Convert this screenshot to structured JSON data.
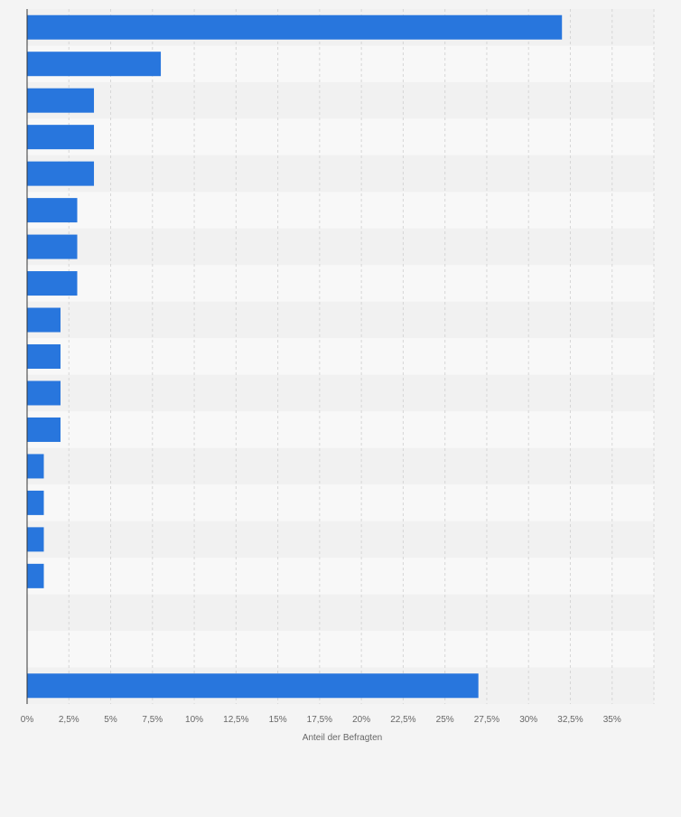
{
  "chart_data": {
    "type": "bar",
    "orientation": "horizontal",
    "categories": [
      "",
      "",
      "",
      "",
      "",
      "",
      "",
      "",
      "",
      "",
      "",
      "",
      "",
      "",
      "",
      "",
      "",
      "",
      ""
    ],
    "values": [
      32,
      8,
      4,
      4,
      4,
      3,
      3,
      3,
      2,
      2,
      2,
      2,
      1,
      1,
      1,
      1,
      0,
      0,
      27
    ],
    "xlabel": "Anteil der Befragten",
    "ylabel": "",
    "xlim": [
      0,
      37.5
    ],
    "x_ticks": [
      0,
      2.5,
      5,
      7.5,
      10,
      12.5,
      15,
      17.5,
      20,
      22.5,
      25,
      27.5,
      30,
      32.5,
      35
    ],
    "x_tick_labels": [
      "0%",
      "2,5%",
      "5%",
      "7,5%",
      "10%",
      "12,5%",
      "15%",
      "17,5%",
      "20%",
      "22,5%",
      "25%",
      "27,5%",
      "30%",
      "32,5%",
      "35%"
    ],
    "grid": true,
    "legend": "none",
    "colors": {
      "bar": "#2876dd",
      "band_light": "#f8f8f8",
      "band_dark": "#f1f1f1",
      "grid": "#d6d6d6",
      "axis": "#333333",
      "tick_text": "#666666",
      "page": "#f4f4f4"
    }
  }
}
